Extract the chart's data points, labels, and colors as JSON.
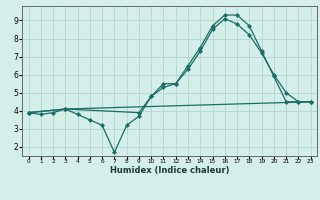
{
  "xlabel": "Humidex (Indice chaleur)",
  "ylabel": "",
  "bg_color": "#d4eeea",
  "grid_color": "#b8d8d4",
  "line_color": "#1a6e64",
  "xlim": [
    -0.5,
    23.5
  ],
  "ylim": [
    1.5,
    9.8
  ],
  "xticks": [
    0,
    1,
    2,
    3,
    4,
    5,
    6,
    7,
    8,
    9,
    10,
    11,
    12,
    13,
    14,
    15,
    16,
    17,
    18,
    19,
    20,
    21,
    22,
    23
  ],
  "yticks": [
    2,
    3,
    4,
    5,
    6,
    7,
    8,
    9
  ],
  "series": [
    {
      "x": [
        0,
        1,
        2,
        3,
        4,
        5,
        6,
        7,
        8,
        9,
        10,
        11,
        12,
        13,
        14,
        15,
        16,
        17,
        18,
        19,
        20,
        21,
        22,
        23
      ],
      "y": [
        3.9,
        3.8,
        3.9,
        4.1,
        3.8,
        3.5,
        3.2,
        1.7,
        3.2,
        3.7,
        4.8,
        5.5,
        5.5,
        6.5,
        7.5,
        8.7,
        9.3,
        9.3,
        8.7,
        7.3,
        5.9,
        4.5,
        4.5,
        4.5
      ]
    },
    {
      "x": [
        0,
        3,
        9,
        10,
        11,
        12,
        13,
        14,
        15,
        16,
        17,
        18,
        19,
        20,
        21,
        22,
        23
      ],
      "y": [
        3.9,
        4.1,
        3.9,
        4.8,
        5.3,
        5.5,
        6.3,
        7.3,
        8.5,
        9.1,
        8.8,
        8.2,
        7.2,
        6.0,
        5.0,
        4.5,
        4.5
      ]
    },
    {
      "x": [
        0,
        3,
        23
      ],
      "y": [
        3.9,
        4.1,
        4.5
      ]
    }
  ]
}
